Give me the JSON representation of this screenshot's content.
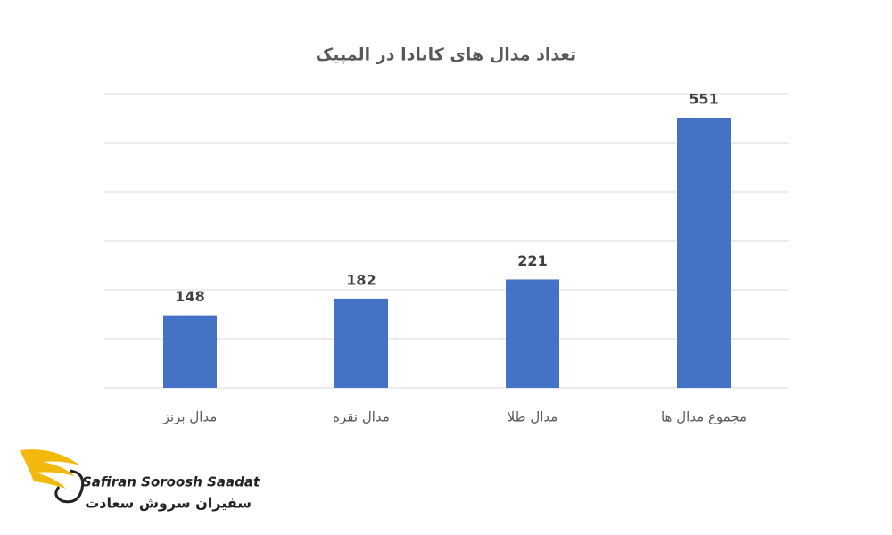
{
  "chart_data": {
    "type": "bar",
    "title": "تعداد مدال های کانادا در المپیک",
    "categories": [
      "مدال برنز",
      "مدال نقره",
      "مدال طلا",
      "مجموع مدال ها"
    ],
    "values": [
      148,
      182,
      221,
      551
    ],
    "color": "#4472c4",
    "ylim": [
      0,
      600
    ],
    "yticks": [
      0,
      100,
      200,
      300,
      400,
      500,
      600
    ],
    "grid": true,
    "data_labels": true
  },
  "logo": {
    "name_en": "Safiran Soroosh Saadat",
    "name_fa": "سفیران سروش سعادت"
  }
}
